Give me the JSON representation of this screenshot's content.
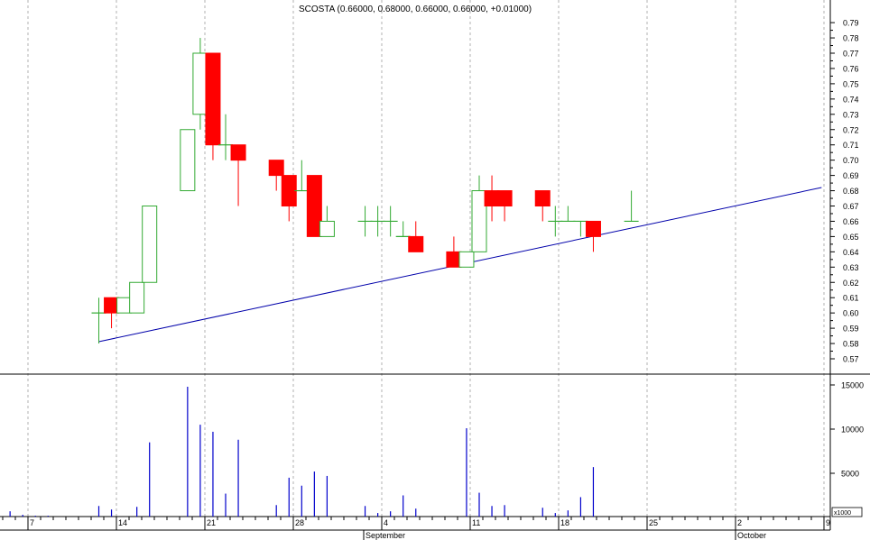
{
  "chart_data": {
    "type": "candlestick",
    "title": "SCOSTA (0.66000, 0.68000, 0.66000, 0.66000, +0.01000)",
    "price_axis": {
      "ylim": [
        0.565,
        0.795
      ],
      "ticks": [
        "0.57",
        "0.58",
        "0.59",
        "0.60",
        "0.61",
        "0.62",
        "0.63",
        "0.64",
        "0.65",
        "0.66",
        "0.67",
        "0.68",
        "0.69",
        "0.70",
        "0.71",
        "0.72",
        "0.73",
        "0.74",
        "0.75",
        "0.76",
        "0.77",
        "0.78",
        "0.79"
      ],
      "side": "right",
      "grid": "vertical-dashed"
    },
    "volume_axis": {
      "ylim": [
        0,
        17000
      ],
      "ticks": [
        "5000",
        "10000",
        "15000"
      ],
      "unit_label": "x1000"
    },
    "x_axis": {
      "day_labels": [
        "7",
        "14",
        "21",
        "28",
        "4",
        "11",
        "18",
        "25",
        "2",
        "9"
      ],
      "month_labels": [
        "September",
        "October"
      ]
    },
    "up_color": "#33aa33",
    "down_color": "#ff0000",
    "trendline_color": "#0000aa",
    "volume_color": "#0000cc",
    "candles": [
      {
        "date": "Aug 13",
        "open": 0.6,
        "high": 0.61,
        "low": 0.58,
        "close": 0.6
      },
      {
        "date": "Aug 14",
        "open": 0.61,
        "high": 0.61,
        "low": 0.59,
        "close": 0.6
      },
      {
        "date": "Aug 15",
        "open": 0.6,
        "high": 0.61,
        "low": 0.6,
        "close": 0.61
      },
      {
        "date": "Aug 16",
        "open": 0.6,
        "high": 0.62,
        "low": 0.6,
        "close": 0.62
      },
      {
        "date": "Aug 17",
        "open": 0.62,
        "high": 0.67,
        "low": 0.62,
        "close": 0.67
      },
      {
        "date": "Aug 20",
        "open": 0.68,
        "high": 0.72,
        "low": 0.68,
        "close": 0.72
      },
      {
        "date": "Aug 21",
        "open": 0.73,
        "high": 0.78,
        "low": 0.72,
        "close": 0.77
      },
      {
        "date": "Aug 22",
        "open": 0.77,
        "high": 0.77,
        "low": 0.7,
        "close": 0.71
      },
      {
        "date": "Aug 23",
        "open": 0.71,
        "high": 0.73,
        "low": 0.7,
        "close": 0.71
      },
      {
        "date": "Aug 24",
        "open": 0.71,
        "high": 0.71,
        "low": 0.67,
        "close": 0.7
      },
      {
        "date": "Aug 27",
        "open": 0.7,
        "high": 0.7,
        "low": 0.68,
        "close": 0.69
      },
      {
        "date": "Aug 28",
        "open": 0.69,
        "high": 0.69,
        "low": 0.66,
        "close": 0.67
      },
      {
        "date": "Aug 29",
        "open": 0.68,
        "high": 0.7,
        "low": 0.68,
        "close": 0.68
      },
      {
        "date": "Aug 30",
        "open": 0.69,
        "high": 0.69,
        "low": 0.65,
        "close": 0.65
      },
      {
        "date": "Aug 31",
        "open": 0.65,
        "high": 0.67,
        "low": 0.65,
        "close": 0.66
      },
      {
        "date": "Sep 3",
        "open": 0.66,
        "high": 0.67,
        "low": 0.65,
        "close": 0.66
      },
      {
        "date": "Sep 4",
        "open": 0.66,
        "high": 0.67,
        "low": 0.65,
        "close": 0.66
      },
      {
        "date": "Sep 5",
        "open": 0.66,
        "high": 0.67,
        "low": 0.65,
        "close": 0.66
      },
      {
        "date": "Sep 6",
        "open": 0.65,
        "high": 0.66,
        "low": 0.65,
        "close": 0.65
      },
      {
        "date": "Sep 7",
        "open": 0.65,
        "high": 0.66,
        "low": 0.64,
        "close": 0.64
      },
      {
        "date": "Sep 10",
        "open": 0.64,
        "high": 0.65,
        "low": 0.63,
        "close": 0.63
      },
      {
        "date": "Sep 11",
        "open": 0.63,
        "high": 0.64,
        "low": 0.63,
        "close": 0.64
      },
      {
        "date": "Sep 12",
        "open": 0.64,
        "high": 0.69,
        "low": 0.64,
        "close": 0.68
      },
      {
        "date": "Sep 13",
        "open": 0.68,
        "high": 0.69,
        "low": 0.66,
        "close": 0.67
      },
      {
        "date": "Sep 14",
        "open": 0.68,
        "high": 0.68,
        "low": 0.66,
        "close": 0.67
      },
      {
        "date": "Sep 17",
        "open": 0.68,
        "high": 0.68,
        "low": 0.66,
        "close": 0.67
      },
      {
        "date": "Sep 18",
        "open": 0.66,
        "high": 0.67,
        "low": 0.65,
        "close": 0.66
      },
      {
        "date": "Sep 19",
        "open": 0.66,
        "high": 0.67,
        "low": 0.66,
        "close": 0.66
      },
      {
        "date": "Sep 20",
        "open": 0.66,
        "high": 0.66,
        "low": 0.65,
        "close": 0.66
      },
      {
        "date": "Sep 21",
        "open": 0.66,
        "high": 0.66,
        "low": 0.64,
        "close": 0.65
      },
      {
        "date": "Sep 24",
        "open": 0.66,
        "high": 0.68,
        "low": 0.66,
        "close": 0.66
      }
    ],
    "volumes": [
      {
        "date": "Aug 6",
        "value": 700
      },
      {
        "date": "Aug 7",
        "value": 300
      },
      {
        "date": "Aug 8",
        "value": 200
      },
      {
        "date": "Aug 9",
        "value": 200
      },
      {
        "date": "Aug 13",
        "value": 1300
      },
      {
        "date": "Aug 14",
        "value": 900
      },
      {
        "date": "Aug 16",
        "value": 1200
      },
      {
        "date": "Aug 17",
        "value": 8500
      },
      {
        "date": "Aug 20",
        "value": 14800
      },
      {
        "date": "Aug 21",
        "value": 10500
      },
      {
        "date": "Aug 22",
        "value": 9700
      },
      {
        "date": "Aug 23",
        "value": 2700
      },
      {
        "date": "Aug 24",
        "value": 8800
      },
      {
        "date": "Aug 27",
        "value": 1400
      },
      {
        "date": "Aug 28",
        "value": 4500
      },
      {
        "date": "Aug 29",
        "value": 3600
      },
      {
        "date": "Aug 30",
        "value": 5200
      },
      {
        "date": "Aug 31",
        "value": 4700
      },
      {
        "date": "Sep 3",
        "value": 1300
      },
      {
        "date": "Sep 4",
        "value": 500
      },
      {
        "date": "Sep 5",
        "value": 700
      },
      {
        "date": "Sep 6",
        "value": 2500
      },
      {
        "date": "Sep 7",
        "value": 1000
      },
      {
        "date": "Sep 11",
        "value": 10100
      },
      {
        "date": "Sep 12",
        "value": 2800
      },
      {
        "date": "Sep 13",
        "value": 1300
      },
      {
        "date": "Sep 14",
        "value": 1400
      },
      {
        "date": "Sep 17",
        "value": 1100
      },
      {
        "date": "Sep 18",
        "value": 500
      },
      {
        "date": "Sep 19",
        "value": 800
      },
      {
        "date": "Sep 20",
        "value": 2300
      },
      {
        "date": "Sep 21",
        "value": 5700
      }
    ],
    "trendline": [
      {
        "date": "Aug 13",
        "value": 0.5812
      },
      {
        "date": "Oct 9",
        "value": 0.6821
      }
    ]
  }
}
